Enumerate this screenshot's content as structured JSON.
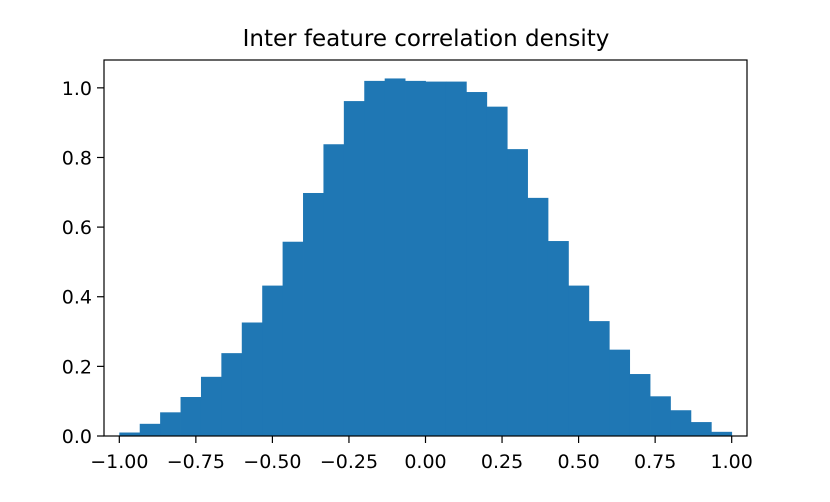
{
  "chart_data": {
    "type": "bar",
    "title": "Inter feature correlation density",
    "xlabel": "",
    "ylabel": "",
    "xlim": [
      -1.05,
      1.05
    ],
    "ylim": [
      0,
      1.08
    ],
    "bin_width": 0.0667,
    "bin_edges": [
      -1.0,
      -0.9333,
      -0.8667,
      -0.8,
      -0.7333,
      -0.6667,
      -0.6,
      -0.5333,
      -0.4667,
      -0.4,
      -0.3333,
      -0.2667,
      -0.2,
      -0.1333,
      -0.0667,
      0.0,
      0.0667,
      0.1333,
      0.2,
      0.2667,
      0.3333,
      0.4,
      0.4667,
      0.5333,
      0.6,
      0.6667,
      0.7333,
      0.8,
      0.8667,
      0.9333,
      1.0
    ],
    "values": [
      0.01,
      0.035,
      0.068,
      0.112,
      0.17,
      0.238,
      0.326,
      0.432,
      0.558,
      0.698,
      0.838,
      0.962,
      1.02,
      1.027,
      1.02,
      1.018,
      1.018,
      0.988,
      0.946,
      0.824,
      0.684,
      0.56,
      0.432,
      0.33,
      0.248,
      0.178,
      0.114,
      0.074,
      0.04,
      0.012
    ],
    "xticks": [
      -1.0,
      -0.75,
      -0.5,
      -0.25,
      0.0,
      0.25,
      0.5,
      0.75,
      1.0
    ],
    "xtick_labels": [
      "−1.00",
      "−0.75",
      "−0.50",
      "−0.25",
      "0.00",
      "0.25",
      "0.50",
      "0.75",
      "1.00"
    ],
    "yticks": [
      0.0,
      0.2,
      0.4,
      0.6,
      0.8,
      1.0
    ],
    "ytick_labels": [
      "0.0",
      "0.2",
      "0.4",
      "0.6",
      "0.8",
      "1.0"
    ],
    "grid": false,
    "bar_color": "#1f77b4"
  }
}
